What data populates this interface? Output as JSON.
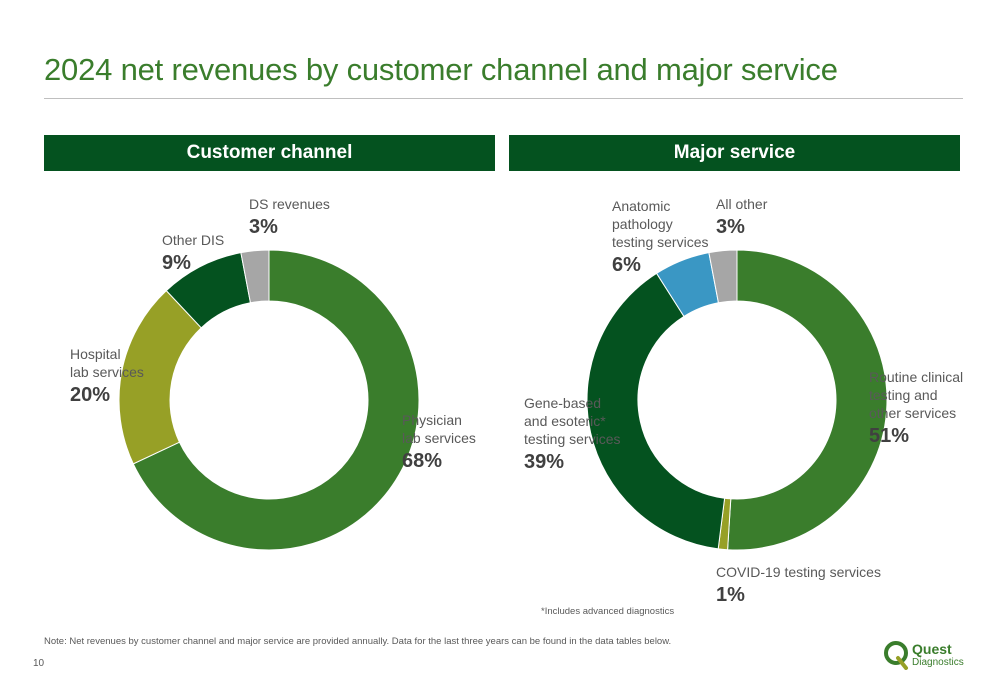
{
  "page": {
    "title": "2024 net revenues by customer channel and major service",
    "footnote": "*Includes advanced diagnostics",
    "note": "Note: Net revenues by customer channel and major service are provided annually. Data for the last three years can be found in the data tables below.",
    "page_number": "10",
    "logo": {
      "word": "Quest",
      "sub": "Diagnostics"
    }
  },
  "chart_data": [
    {
      "type": "pie",
      "title": "Customer channel",
      "donut": true,
      "slices": [
        {
          "label_lines": [
            "Physician",
            "lab services"
          ],
          "value": 68,
          "pct_label": "68%",
          "color": "#3a7d2c"
        },
        {
          "label_lines": [
            "Hospital",
            "lab services"
          ],
          "value": 20,
          "pct_label": "20%",
          "color": "#97a026"
        },
        {
          "label_lines": [
            "Other DIS"
          ],
          "value": 9,
          "pct_label": "9%",
          "color": "#04521f"
        },
        {
          "label_lines": [
            "DS revenues"
          ],
          "value": 3,
          "pct_label": "3%",
          "color": "#a6a6a6"
        }
      ]
    },
    {
      "type": "pie",
      "title": "Major service",
      "donut": true,
      "slices": [
        {
          "label_lines": [
            "Routine clinical",
            "testing and",
            "other services"
          ],
          "value": 51,
          "pct_label": "51%",
          "color": "#3a7d2c"
        },
        {
          "label_lines": [
            "COVID-19 testing services"
          ],
          "value": 1,
          "pct_label": "1%",
          "color": "#97a026"
        },
        {
          "label_lines": [
            "Gene-based",
            "and esoteric*",
            "testing services"
          ],
          "value": 39,
          "pct_label": "39%",
          "color": "#04521f"
        },
        {
          "label_lines": [
            "Anatomic",
            "pathology",
            "testing services"
          ],
          "value": 6,
          "pct_label": "6%",
          "color": "#3a97c4"
        },
        {
          "label_lines": [
            "All other"
          ],
          "value": 3,
          "pct_label": "3%",
          "color": "#a6a6a6"
        }
      ]
    }
  ]
}
